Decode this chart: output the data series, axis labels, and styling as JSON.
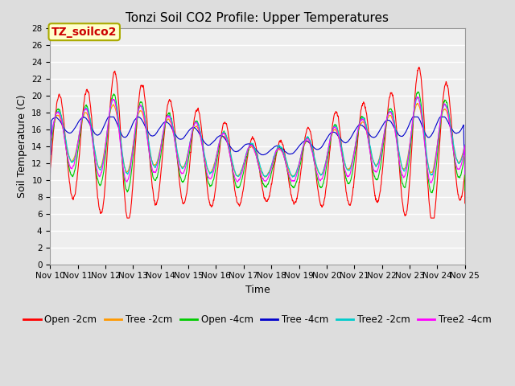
{
  "title": "Tonzi Soil CO2 Profile: Upper Temperatures",
  "ylabel": "Soil Temperature (C)",
  "xlabel": "Time",
  "annotation": "TZ_soilco2",
  "ylim": [
    0,
    28
  ],
  "ytick_interval": 2,
  "series_colors": {
    "Open -2cm": "#ff0000",
    "Tree -2cm": "#ff9900",
    "Open -4cm": "#00cc00",
    "Tree -4cm": "#0000cc",
    "Tree2 -2cm": "#00cccc",
    "Tree2 -4cm": "#ff00ff"
  },
  "background_color": "#dddddd",
  "plot_bg_color": "#eeeeee",
  "title_fontsize": 11,
  "axis_label_fontsize": 9,
  "tick_fontsize": 7.5,
  "legend_fontsize": 8.5,
  "annotation_fontsize": 10,
  "annotation_bg": "#ffffcc",
  "annotation_border": "#aaaa00",
  "figsize": [
    6.4,
    4.8
  ],
  "dpi": 100
}
